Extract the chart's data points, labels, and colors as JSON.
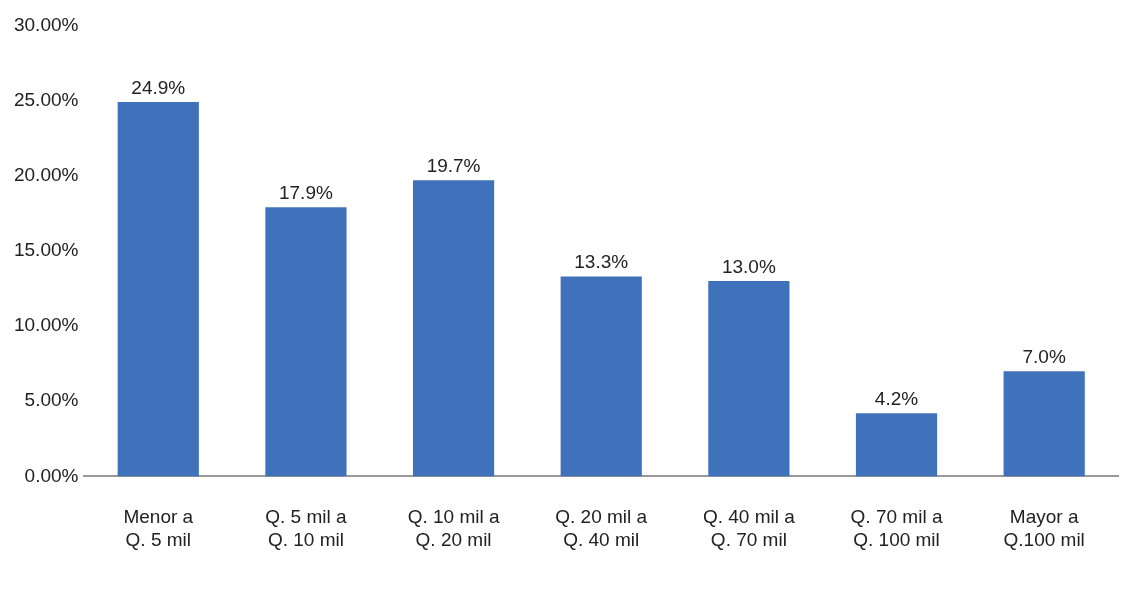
{
  "chart_data": {
    "type": "bar",
    "categories": [
      "Menor a\nQ. 5 mil",
      "Q. 5 mil a\nQ. 10 mil",
      "Q. 10 mil a\nQ. 20 mil",
      "Q. 20 mil a\nQ. 40 mil",
      "Q. 40 mil a\nQ. 70 mil",
      "Q. 70 mil a\nQ. 100 mil",
      "Mayor a\nQ.100 mil"
    ],
    "values": [
      24.9,
      17.9,
      19.7,
      13.3,
      13.0,
      4.2,
      7.0
    ],
    "value_labels": [
      "24.9%",
      "17.9%",
      "19.7%",
      "13.3%",
      "13.0%",
      "4.2%",
      "7.0%"
    ],
    "color": "#3f72ba",
    "ylim": [
      0,
      30
    ],
    "yticks": [
      {
        "value": 0,
        "label": "0.00%"
      },
      {
        "value": 5,
        "label": "5.00%"
      },
      {
        "value": 10,
        "label": "10.00%"
      },
      {
        "value": 15,
        "label": "15.00%"
      },
      {
        "value": 20,
        "label": "20.00%"
      },
      {
        "value": 25,
        "label": "25.00%"
      },
      {
        "value": 30,
        "label": "30.00%"
      }
    ],
    "grid": false,
    "legend": false
  }
}
